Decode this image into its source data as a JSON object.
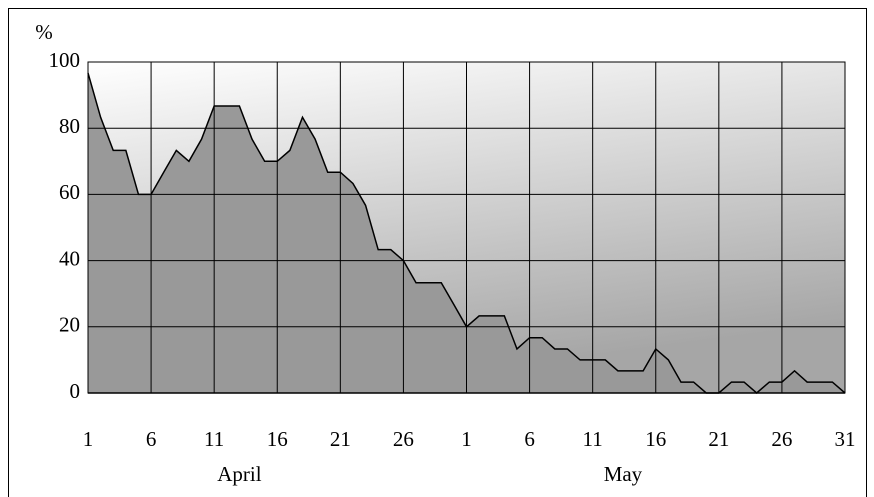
{
  "chart_data": {
    "type": "area",
    "y_label": "%",
    "categories": [
      "1",
      null,
      null,
      null,
      null,
      "6",
      null,
      null,
      null,
      null,
      "11",
      null,
      null,
      null,
      null,
      "16",
      null,
      null,
      null,
      null,
      "21",
      null,
      null,
      null,
      null,
      "26",
      null,
      null,
      null,
      null,
      "1",
      null,
      null,
      null,
      null,
      "6",
      null,
      null,
      null,
      null,
      "11",
      null,
      null,
      null,
      null,
      "16",
      null,
      null,
      null,
      null,
      "21",
      null,
      null,
      null,
      null,
      "26",
      null,
      null,
      null,
      null,
      "31"
    ],
    "groups": [
      "April",
      "May"
    ],
    "values": [
      96.7,
      83.3,
      73.3,
      73.3,
      60,
      60,
      66.7,
      73.3,
      70,
      76.7,
      86.7,
      86.7,
      86.7,
      76.7,
      70,
      70,
      73.3,
      83.3,
      76.7,
      66.7,
      66.7,
      63.3,
      56.7,
      43.3,
      43.3,
      40,
      33.3,
      33.3,
      33.3,
      26.7,
      20,
      23.3,
      23.3,
      23.3,
      13.3,
      16.7,
      16.7,
      13.3,
      13.3,
      10,
      10,
      10,
      6.7,
      6.7,
      6.7,
      13.3,
      10,
      3.3,
      3.3,
      0,
      0,
      3.3,
      3.3,
      0,
      3.3,
      3.3,
      6.7,
      3.3,
      3.3,
      3.3,
      0
    ],
    "color": "#999999",
    "ylim": [
      0,
      100
    ],
    "yticks": [
      0,
      20,
      40,
      60,
      80,
      100
    ],
    "grid": true
  }
}
